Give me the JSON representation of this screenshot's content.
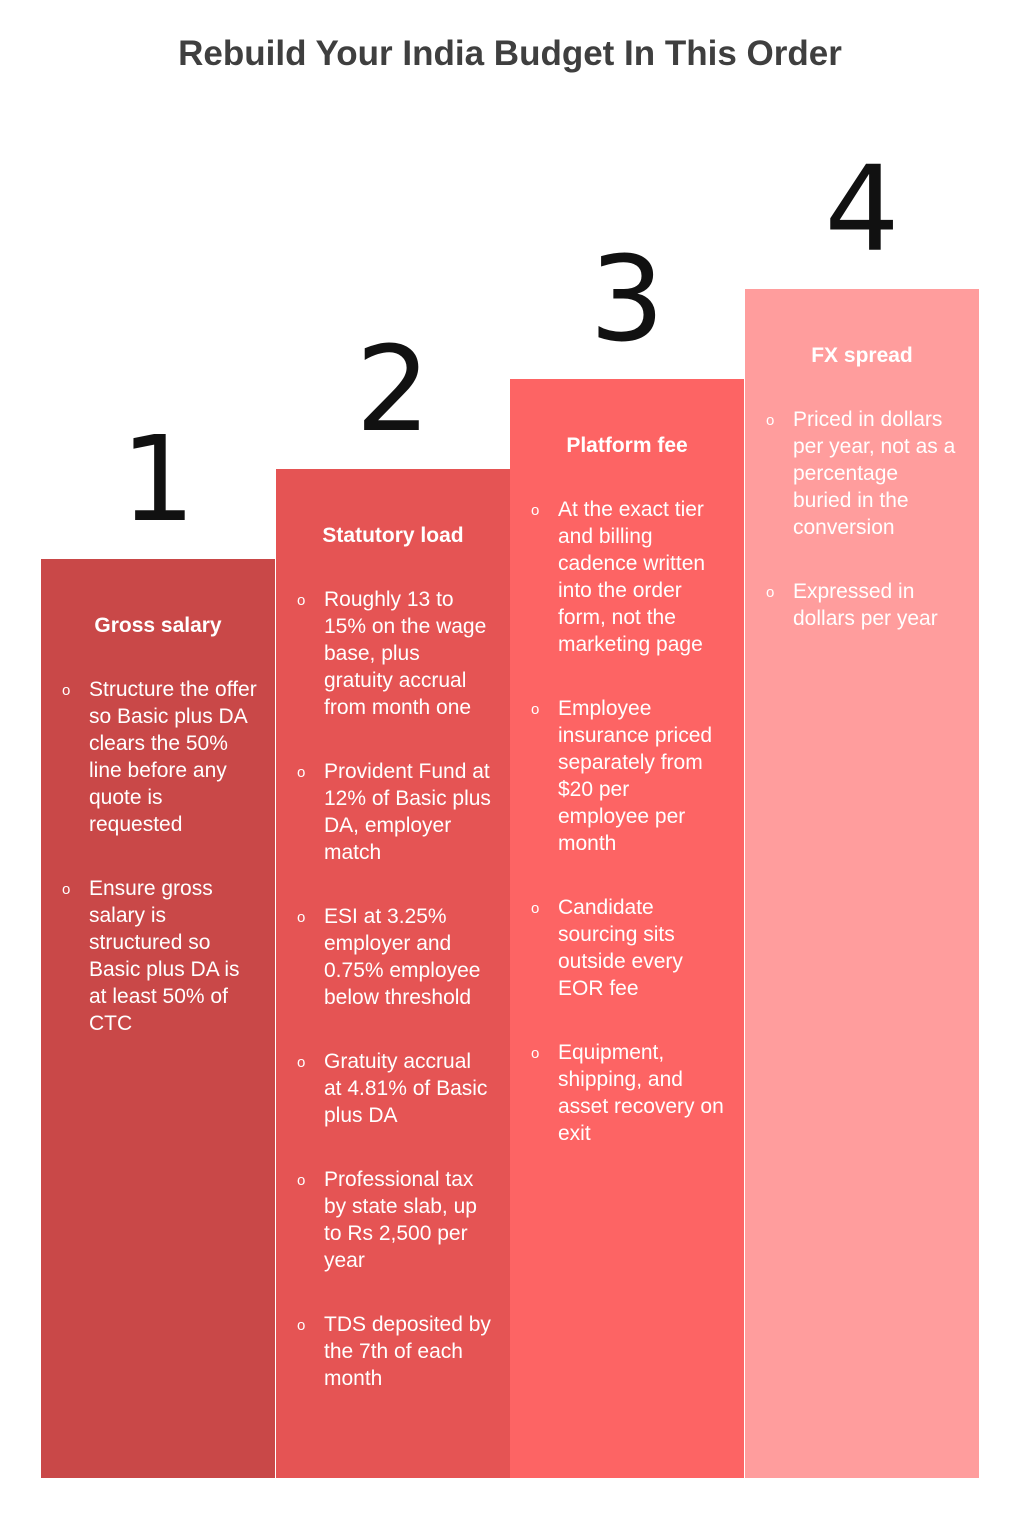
{
  "title": "Rebuild Your India Budget In This Order",
  "steps": [
    {
      "number": "1",
      "heading": "Gross salary",
      "color": "#c94848",
      "bullets": [
        "Structure the offer so Basic plus DA clears the 50% line before any quote is requested",
        "Ensure gross salary is structured so Basic plus DA is at least 50% of CTC"
      ]
    },
    {
      "number": "2",
      "heading": "Statutory load",
      "color": "#e55454",
      "bullets": [
        "Roughly 13 to 15% on the wage base, plus gratuity accrual from month one",
        "Provident Fund at 12% of Basic plus DA, employer match",
        "ESI at 3.25% employer and 0.75% employee below threshold",
        "Gratuity accrual at 4.81% of Basic plus DA",
        "Professional tax by state slab, up to Rs 2,500 per year",
        "TDS deposited by the 7th of each month"
      ]
    },
    {
      "number": "3",
      "heading": "Platform fee",
      "color": "#fd6464",
      "bullets": [
        "At the exact tier and billing cadence written into the order form, not the marketing page",
        "Employee insurance priced separately from $20 per employee per month",
        "Candidate sourcing sits outside every EOR fee",
        "Equipment, shipping, and asset recovery on exit"
      ]
    },
    {
      "number": "4",
      "heading": "FX spread",
      "color": "#ff9d9d",
      "bullets": [
        "Priced in dollars per year, not as a percentage buried in the conversion",
        "Expressed in dollars per year"
      ]
    }
  ]
}
